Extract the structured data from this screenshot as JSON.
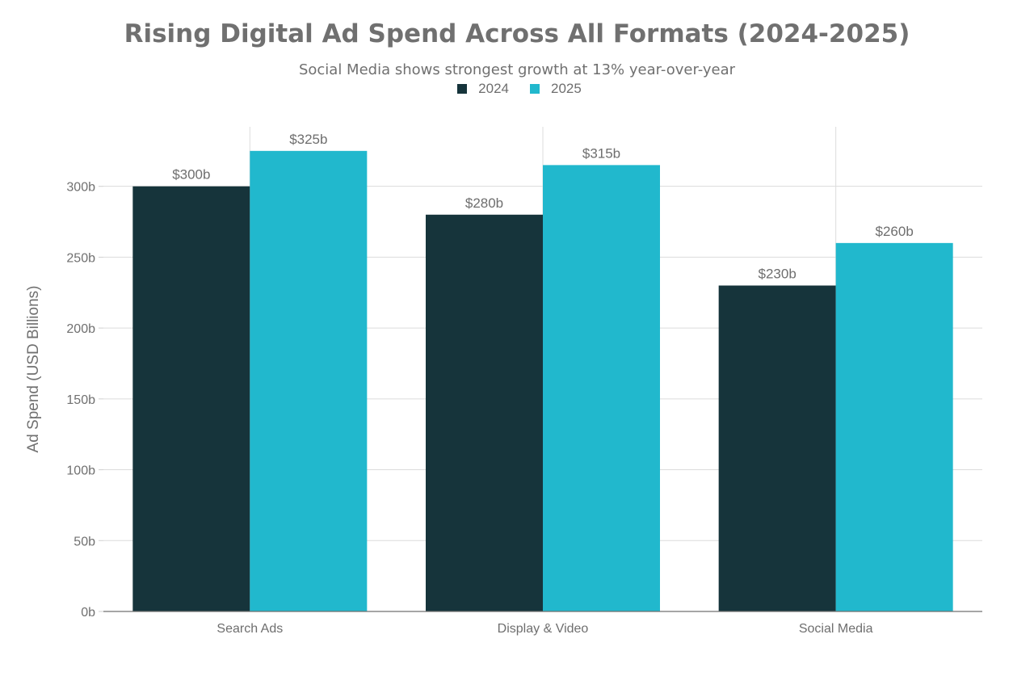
{
  "chart_data": {
    "type": "bar",
    "title": "Rising Digital Ad Spend Across All Formats (2024-2025)",
    "subtitle": "Social Media shows strongest growth at 13% year-over-year",
    "xlabel": "",
    "ylabel": "Ad Spend (USD Billions)",
    "categories": [
      "Search Ads",
      "Display & Video",
      "Social Media"
    ],
    "series": [
      {
        "name": "2024",
        "color": "#16343b",
        "values": [
          300,
          280,
          230
        ],
        "labels": [
          "$300b",
          "$280b",
          "$230b"
        ]
      },
      {
        "name": "2025",
        "color": "#21b8cd",
        "values": [
          325,
          315,
          260
        ],
        "labels": [
          "$325b",
          "$315b",
          "$260b"
        ]
      }
    ],
    "ylim": [
      0,
      342
    ],
    "yticks": [
      0,
      50,
      100,
      150,
      200,
      250,
      300
    ],
    "ytick_labels": [
      "0b",
      "50b",
      "100b",
      "150b",
      "200b",
      "250b",
      "300b"
    ],
    "grid": true,
    "legend_position": "top-center"
  }
}
